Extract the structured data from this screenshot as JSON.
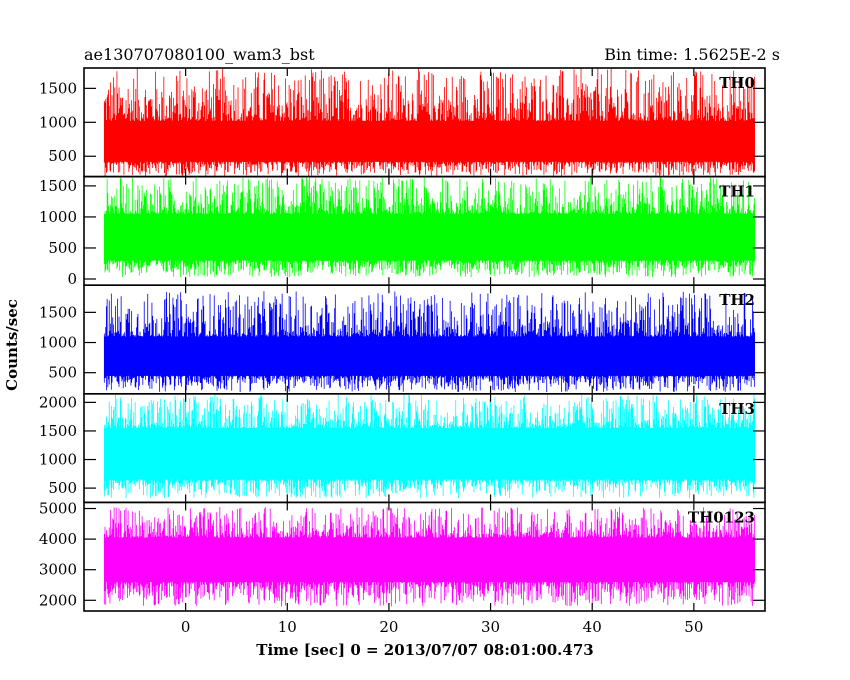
{
  "chart_data": {
    "type": "line",
    "title": "ae130707080100_wam3_bst",
    "subtitle": "Bin time: 1.5625E-2 s",
    "xlabel": "Time [sec] 0 = 2013/07/07 08:01:00.473",
    "ylabel": "Counts/sec",
    "xlim": [
      -10,
      57
    ],
    "x_ticks": [
      0,
      10,
      20,
      30,
      40,
      50
    ],
    "x_tick_labels": [
      "0",
      "10",
      "20",
      "30",
      "40",
      "50"
    ],
    "data_x_range": [
      -8,
      56
    ],
    "bin_time_s": 0.015625,
    "grid": false,
    "legend": "none",
    "panels": [
      {
        "name": "TH0",
        "color": "#ff0000",
        "ylim": [
          200,
          1800
        ],
        "yticks": [
          500,
          1000,
          1500
        ],
        "ytick_labels": [
          "500",
          "1000",
          "1500"
        ],
        "band_low": 420,
        "band_high": 1020,
        "spike_low": 200,
        "spike_high": 1800
      },
      {
        "name": "TH1",
        "color": "#00ff00",
        "ylim": [
          -100,
          1650
        ],
        "yticks": [
          0,
          500,
          1000,
          1500
        ],
        "ytick_labels": [
          "0",
          "500",
          "1000",
          "1500"
        ],
        "band_low": 300,
        "band_high": 1050,
        "spike_low": 30,
        "spike_high": 1650
      },
      {
        "name": "TH2",
        "color": "#0000ff",
        "ylim": [
          150,
          1950
        ],
        "yticks": [
          500,
          1000,
          1500
        ],
        "ytick_labels": [
          "500",
          "1000",
          "1500"
        ],
        "band_low": 450,
        "band_high": 1100,
        "spike_low": 180,
        "spike_high": 1850
      },
      {
        "name": "TH3",
        "color": "#00ffff",
        "ylim": [
          250,
          2150
        ],
        "yticks": [
          500,
          1000,
          1500,
          2000
        ],
        "ytick_labels": [
          "500",
          "1000",
          "1500",
          "2000"
        ],
        "band_low": 650,
        "band_high": 1550,
        "spike_low": 320,
        "spike_high": 2150
      },
      {
        "name": "TH0123",
        "color": "#ff00ff",
        "ylim": [
          1650,
          5200
        ],
        "yticks": [
          2000,
          3000,
          4000,
          5000
        ],
        "ytick_labels": [
          "2000",
          "3000",
          "4000",
          "5000"
        ],
        "band_low": 2600,
        "band_high": 4050,
        "spike_low": 1800,
        "spike_high": 5050
      }
    ]
  }
}
